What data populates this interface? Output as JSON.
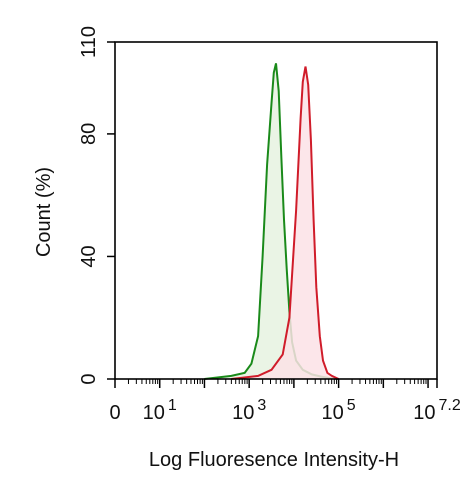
{
  "chart_data": {
    "type": "area",
    "xlabel": "Log Fluoresence Intensity-H",
    "ylabel": "Count  (%)",
    "xscale": "log",
    "xlim_log10": [
      0,
      7.2
    ],
    "ylim": [
      0,
      110
    ],
    "y_ticks": [
      0,
      40,
      80,
      110
    ],
    "x_tick_labels": [
      {
        "base": "0",
        "exp": ""
      },
      {
        "base": "10",
        "exp": "1"
      },
      {
        "base": "10",
        "exp": "3"
      },
      {
        "base": "10",
        "exp": "5"
      },
      {
        "base": "10",
        "exp": "7.2"
      }
    ],
    "grid": false,
    "series": [
      {
        "color": "#1a8a1a",
        "fill": "#e6f2e0",
        "log10_x": [
          2.0,
          2.6,
          2.9,
          3.05,
          3.2,
          3.3,
          3.4,
          3.5,
          3.55,
          3.6,
          3.66,
          3.72,
          3.78,
          3.84,
          3.9,
          3.96,
          4.05,
          4.2,
          4.4,
          4.6,
          4.8,
          5.0
        ],
        "count": [
          0,
          1,
          2,
          5,
          14,
          40,
          70,
          90,
          100,
          103,
          94,
          72,
          52,
          36,
          22,
          12,
          6,
          3,
          1.5,
          0.8,
          0.3,
          0
        ]
      },
      {
        "color": "#d01c2a",
        "fill": "#fbe2e6",
        "log10_x": [
          2.6,
          3.2,
          3.5,
          3.75,
          3.9,
          4.05,
          4.15,
          4.2,
          4.26,
          4.32,
          4.38,
          4.44,
          4.5,
          4.58,
          4.65,
          4.75,
          4.85,
          5.0
        ],
        "count": [
          0,
          1,
          3,
          8,
          20,
          55,
          85,
          97,
          102,
          96,
          78,
          52,
          30,
          14,
          6,
          2,
          1,
          0
        ]
      }
    ]
  }
}
